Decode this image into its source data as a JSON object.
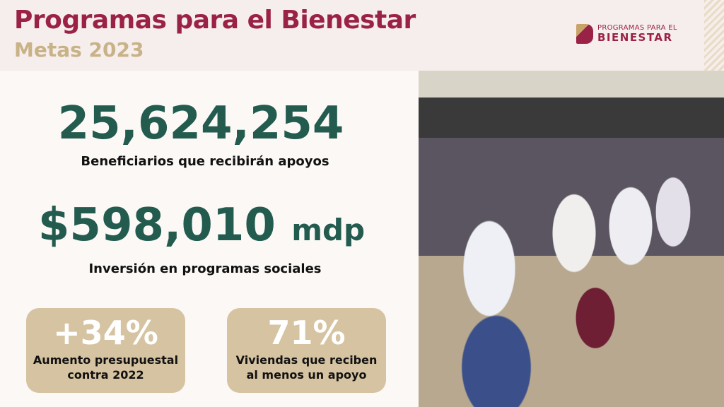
{
  "header": {
    "title": "Programas para el Bienestar",
    "subtitle": "Metas 2023",
    "logo_top": "PROGRAMAS PARA EL",
    "logo_bottom": "BIENESTAR"
  },
  "stats": [
    {
      "value": "25,624,254",
      "label": "Beneficiarios que recibirán apoyos"
    },
    {
      "value": "$598,010",
      "unit": "mdp",
      "label": "Inversión en programas sociales"
    }
  ],
  "cards": [
    {
      "value": "+34%",
      "line1": "Aumento presupuestal",
      "line2": "contra 2022"
    },
    {
      "value": "71%",
      "line1": "Viviendas que reciben",
      "line2": "al menos un apoyo"
    }
  ],
  "colors": {
    "maroon": "#9b2247",
    "gold": "#c8b288",
    "green": "#235b4e",
    "card": "#d6c3a1"
  }
}
